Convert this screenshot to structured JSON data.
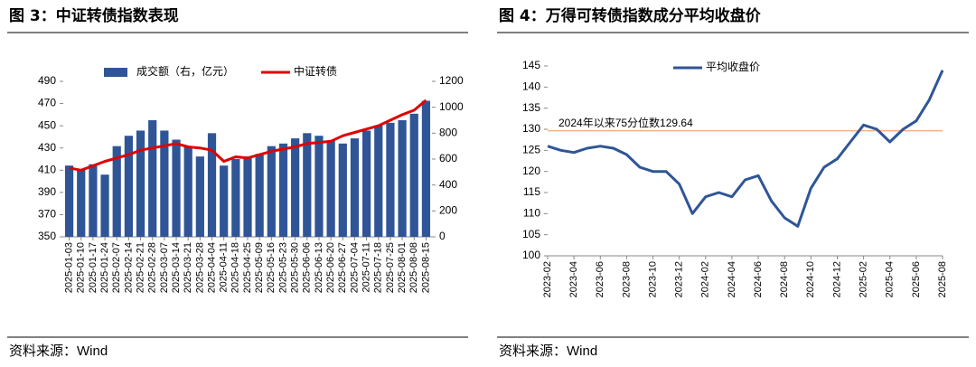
{
  "chart_data": [
    {
      "type": "combo",
      "title": "图 3：中证转债指数表现",
      "source": "资料来源：Wind",
      "categories": [
        "2025-01-03",
        "2025-01-10",
        "2025-01-17",
        "2025-01-24",
        "2025-02-07",
        "2025-02-14",
        "2025-02-21",
        "2025-02-28",
        "2025-03-07",
        "2025-03-14",
        "2025-03-21",
        "2025-03-28",
        "2025-04-04",
        "2025-04-11",
        "2025-04-18",
        "2025-04-25",
        "2025-05-09",
        "2025-05-16",
        "2025-05-23",
        "2025-05-30",
        "2025-06-06",
        "2025-06-13",
        "2025-06-20",
        "2025-06-27",
        "2025-07-04",
        "2025-07-11",
        "2025-07-18",
        "2025-07-25",
        "2025-08-01",
        "2025-08-08",
        "2025-08-15"
      ],
      "series": [
        {
          "name": "成交额（右，亿元）",
          "type": "bar",
          "axis": "y2",
          "color": "#2f5597",
          "values": [
            550,
            520,
            560,
            480,
            700,
            780,
            820,
            900,
            820,
            750,
            700,
            620,
            800,
            550,
            600,
            620,
            640,
            700,
            720,
            760,
            800,
            780,
            740,
            720,
            760,
            820,
            860,
            880,
            900,
            950,
            1050
          ]
        },
        {
          "name": "中证转债",
          "type": "line",
          "color": "#e00000",
          "values": [
            412,
            410,
            414,
            418,
            421,
            424,
            428,
            430,
            432,
            434,
            431,
            430,
            428,
            418,
            422,
            421,
            424,
            427,
            429,
            431,
            434,
            435,
            436,
            441,
            444,
            447,
            450,
            455,
            460,
            464,
            473
          ]
        }
      ],
      "ylim": [
        350,
        490
      ],
      "yticks": [
        350,
        370,
        390,
        410,
        430,
        450,
        470,
        490
      ],
      "y2lim": [
        0,
        1200
      ],
      "y2ticks": [
        0,
        200,
        400,
        600,
        800,
        1000,
        1200
      ]
    },
    {
      "type": "line",
      "title": "图 4：万得可转债指数成分平均收盘价",
      "source": "资料来源：Wind",
      "categories": [
        "2023-02",
        null,
        "2023-04",
        null,
        "2023-06",
        null,
        "2023-08",
        null,
        "2023-10",
        null,
        "2023-12",
        null,
        "2024-02",
        null,
        "2024-04",
        null,
        "2024-06",
        null,
        "2024-08",
        null,
        "2024-10",
        null,
        "2024-12",
        null,
        "2025-02",
        null,
        "2025-04",
        null,
        "2025-06",
        null,
        "2025-08"
      ],
      "series": [
        {
          "name": "平均收盘价",
          "color": "#2f5597",
          "values": [
            126,
            125,
            124.5,
            125.5,
            126,
            125.5,
            124,
            121,
            120,
            120,
            117,
            110,
            114,
            115,
            114,
            118,
            119,
            113,
            109,
            107,
            116,
            121,
            123,
            127,
            131,
            130,
            127,
            130,
            132,
            137,
            144
          ]
        }
      ],
      "reference_line": {
        "value": 129.64,
        "label": "2024年以来75分位数129.64",
        "color": "#f4b183"
      },
      "ylim": [
        100,
        145
      ],
      "yticks": [
        100,
        105,
        110,
        115,
        120,
        125,
        130,
        135,
        140,
        145
      ]
    }
  ]
}
